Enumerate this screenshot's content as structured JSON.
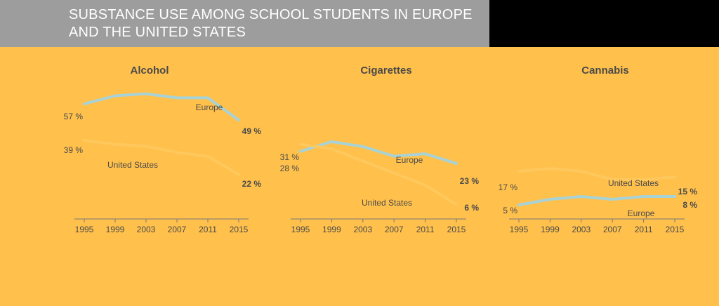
{
  "title": "SUBSTANCE USE AMONG SCHOOL STUDENTS IN EUROPE AND THE UNITED STATES",
  "colors": {
    "background": "#FFC04C",
    "header": "#9D9D9D",
    "europe": "#A8D3D6",
    "united_states": "#FFC85C",
    "text": "#4A4A4A"
  },
  "chart_data": [
    {
      "type": "line",
      "title": "Alcohol",
      "x": [
        1995,
        1999,
        2003,
        2007,
        2011,
        2015
      ],
      "ylim": [
        0,
        65
      ],
      "series": [
        {
          "name": "Europe",
          "values": [
            57,
            61,
            62,
            60,
            60,
            49
          ],
          "start_label": "57 %",
          "end_label": "49 %"
        },
        {
          "name": "United States",
          "values": [
            39,
            37,
            36,
            33,
            31,
            22
          ],
          "start_label": "39 %",
          "end_label": "22 %"
        }
      ]
    },
    {
      "type": "line",
      "title": "Cigarettes",
      "x": [
        1995,
        1999,
        2003,
        2007,
        2011,
        2015
      ],
      "ylim": [
        0,
        34
      ],
      "series": [
        {
          "name": "Europe",
          "values": [
            28,
            32,
            30,
            26,
            27,
            23
          ],
          "start_label": "28 %",
          "end_label": "23 %"
        },
        {
          "name": "United States",
          "values": [
            31,
            29,
            24,
            19,
            14,
            6
          ],
          "start_label": "31 %",
          "end_label": "6 %"
        }
      ]
    },
    {
      "type": "line",
      "title": "Cannabis",
      "x": [
        1995,
        1999,
        2003,
        2007,
        2011,
        2015
      ],
      "ylim": [
        0,
        38
      ],
      "series": [
        {
          "name": "Europe",
          "values": [
            5,
            7,
            8,
            7,
            8,
            8
          ],
          "start_label": "5 %",
          "end_label": "8 %"
        },
        {
          "name": "United States",
          "values": [
            17,
            18,
            17,
            14,
            14,
            15
          ],
          "start_label": "17 %",
          "end_label": "15 %"
        }
      ]
    }
  ]
}
